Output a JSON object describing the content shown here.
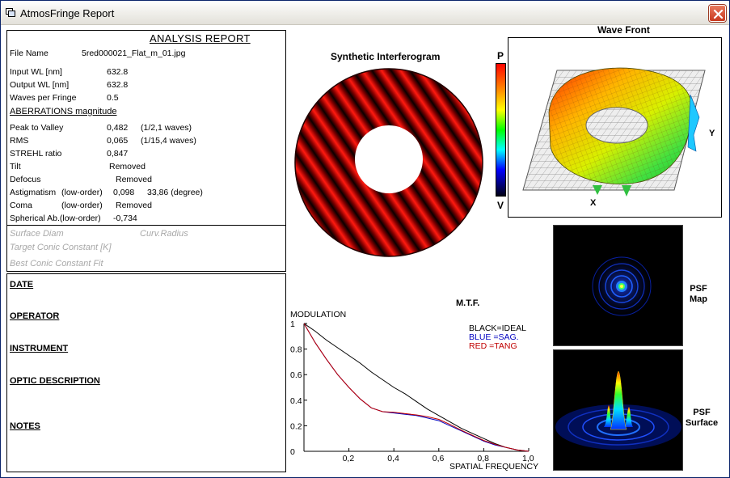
{
  "window": {
    "title": "AtmosFringe  Report"
  },
  "report": {
    "title": "ANALYSIS  REPORT",
    "file_label": "File Name",
    "file_value": "5red000021_Flat_m_01.jpg",
    "input_wl_label": "Input  WL [nm]",
    "input_wl_value": "632.8",
    "output_wl_label": "Output WL [nm]",
    "output_wl_value": "632.8",
    "waves_label": "Waves per Fringe",
    "waves_value": "0.5",
    "aberr_title": "ABERRATIONS magnitude",
    "rows": [
      {
        "label": "Peak to Valley",
        "value": "0,482",
        "extra": "(1/2,1 waves)"
      },
      {
        "label": "RMS",
        "value": "0,065",
        "extra": "(1/15,4 waves)"
      },
      {
        "label": "STREHL ratio",
        "value": "0,847",
        "extra": ""
      },
      {
        "label": "Tilt",
        "value": "Removed",
        "extra": ""
      },
      {
        "label": "Defocus",
        "value": "Removed",
        "extra": ""
      },
      {
        "label": "Astigmatism",
        "sub": "(low-order)",
        "value": "0,098",
        "extra": "33,86  (degree)"
      },
      {
        "label": "Coma",
        "sub": "(low-order)",
        "value": "Removed",
        "extra": ""
      },
      {
        "label": "Spherical Ab.(low-order)",
        "value": "-0,734",
        "extra": ""
      }
    ],
    "surface_diam": "Surface Diam",
    "curv_radius": "Curv.Radius",
    "target_conic": "Target Conic Constant [K]",
    "best_conic": "Best Conic Constant Fit"
  },
  "info": {
    "date": "DATE",
    "operator": "OPERATOR",
    "instrument": "INSTRUMENT",
    "optic": "OPTIC DESCRIPTION",
    "notes": "NOTES"
  },
  "interferogram": {
    "title": "Synthetic Interferogram"
  },
  "scale": {
    "top": "P",
    "bottom": "V"
  },
  "wavefront": {
    "title": "Wave Front",
    "x_axis": "X",
    "y_axis": "Y"
  },
  "psf": {
    "map_label_1": "PSF",
    "map_label_2": "Map",
    "surface_label_1": "PSF",
    "surface_label_2": "Surface"
  },
  "chart_data": {
    "type": "line",
    "title": "M.T.F.",
    "ylabel": "MODULATION",
    "xlabel": "SPATIAL FREQUENCY",
    "xlim": [
      0,
      1
    ],
    "ylim": [
      0,
      1
    ],
    "x_ticks": [
      "0,2",
      "0,4",
      "0,6",
      "0,8",
      "1,0"
    ],
    "y_ticks": [
      "0",
      "0.2",
      "0.4",
      "0.6",
      "0.8",
      "1"
    ],
    "x": [
      0,
      0.05,
      0.1,
      0.15,
      0.2,
      0.25,
      0.3,
      0.35,
      0.4,
      0.45,
      0.5,
      0.55,
      0.6,
      0.65,
      0.7,
      0.75,
      0.8,
      0.85,
      0.9,
      0.95,
      1.0
    ],
    "series": [
      {
        "name": "BLACK=IDEAL",
        "color": "#000000",
        "values": [
          1,
          0.94,
          0.87,
          0.81,
          0.75,
          0.69,
          0.62,
          0.56,
          0.5,
          0.45,
          0.39,
          0.33,
          0.28,
          0.23,
          0.18,
          0.14,
          0.1,
          0.06,
          0.03,
          0.01,
          0
        ]
      },
      {
        "name": "BLUE  =SAG.",
        "color": "#0000c0",
        "values": [
          1,
          0.85,
          0.72,
          0.6,
          0.5,
          0.41,
          0.34,
          0.31,
          0.3,
          0.29,
          0.28,
          0.26,
          0.24,
          0.2,
          0.16,
          0.12,
          0.08,
          0.05,
          0.03,
          0.01,
          0
        ]
      },
      {
        "name": "RED    =TANG",
        "color": "#c00000",
        "values": [
          1,
          0.85,
          0.72,
          0.6,
          0.5,
          0.41,
          0.34,
          0.31,
          0.305,
          0.295,
          0.285,
          0.27,
          0.25,
          0.21,
          0.165,
          0.125,
          0.085,
          0.055,
          0.03,
          0.01,
          0
        ]
      }
    ]
  }
}
